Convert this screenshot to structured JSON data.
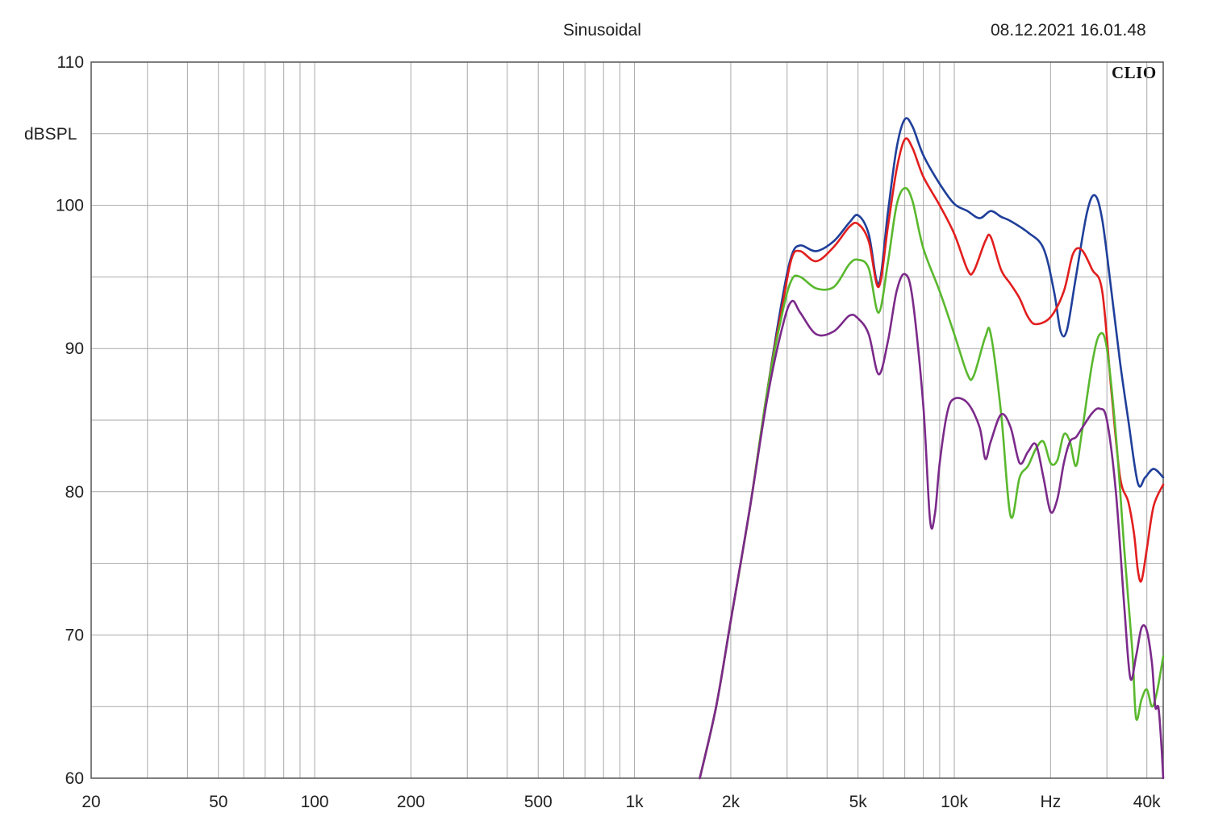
{
  "header": {
    "title": "Sinusoidal",
    "timestamp": "08.12.2021 16.01.48",
    "brand": "CLIO"
  },
  "chart_data": {
    "type": "line",
    "title": "Sinusoidal",
    "xlabel": "Hz",
    "ylabel": "dBSPL",
    "x_scale": "log",
    "xlim": [
      20,
      45000
    ],
    "ylim": [
      60,
      110
    ],
    "grid": true,
    "x_ticks": [
      {
        "value": 20,
        "label": "20"
      },
      {
        "value": 50,
        "label": "50"
      },
      {
        "value": 100,
        "label": "100"
      },
      {
        "value": 200,
        "label": "200"
      },
      {
        "value": 500,
        "label": "500"
      },
      {
        "value": 1000,
        "label": "1k"
      },
      {
        "value": 2000,
        "label": "2k"
      },
      {
        "value": 5000,
        "label": "5k"
      },
      {
        "value": 10000,
        "label": "10k"
      },
      {
        "value": 20000,
        "label": "Hz"
      },
      {
        "value": 40000,
        "label": "40k"
      }
    ],
    "y_ticks": [
      {
        "value": 60,
        "label": "60"
      },
      {
        "value": 70,
        "label": "70"
      },
      {
        "value": 80,
        "label": "80"
      },
      {
        "value": 90,
        "label": "90"
      },
      {
        "value": 100,
        "label": "100"
      },
      {
        "value": 110,
        "label": "110"
      }
    ],
    "series": [
      {
        "color": "#1f3f9a",
        "points": [
          [
            1600,
            60
          ],
          [
            1800,
            65
          ],
          [
            2000,
            71
          ],
          [
            2300,
            79
          ],
          [
            2600,
            87
          ],
          [
            2900,
            93.5
          ],
          [
            3100,
            96.5
          ],
          [
            3300,
            97.2
          ],
          [
            3700,
            96.8
          ],
          [
            4200,
            97.5
          ],
          [
            4700,
            98.8
          ],
          [
            5000,
            99.3
          ],
          [
            5400,
            98
          ],
          [
            5800,
            94.5
          ],
          [
            6200,
            99.5
          ],
          [
            6600,
            104
          ],
          [
            7000,
            106
          ],
          [
            7400,
            105.5
          ],
          [
            8000,
            103.5
          ],
          [
            9000,
            101.5
          ],
          [
            10000,
            100.1
          ],
          [
            11000,
            99.6
          ],
          [
            12000,
            99.1
          ],
          [
            13000,
            99.6
          ],
          [
            14000,
            99.2
          ],
          [
            15000,
            98.9
          ],
          [
            17000,
            98.1
          ],
          [
            19000,
            97
          ],
          [
            20500,
            94
          ],
          [
            21500,
            91.2
          ],
          [
            22500,
            91.3
          ],
          [
            24000,
            95
          ],
          [
            26000,
            99.5
          ],
          [
            27500,
            100.7
          ],
          [
            29000,
            99
          ],
          [
            31000,
            94
          ],
          [
            33000,
            89
          ],
          [
            35000,
            85
          ],
          [
            37500,
            80.6
          ],
          [
            39500,
            81
          ],
          [
            42000,
            81.6
          ],
          [
            45000,
            81
          ]
        ]
      },
      {
        "color": "#e21e1e",
        "points": [
          [
            1600,
            60
          ],
          [
            1800,
            65
          ],
          [
            2000,
            71
          ],
          [
            2300,
            79
          ],
          [
            2600,
            87
          ],
          [
            2900,
            93
          ],
          [
            3100,
            96.3
          ],
          [
            3300,
            96.8
          ],
          [
            3700,
            96.1
          ],
          [
            4200,
            97.1
          ],
          [
            4700,
            98.5
          ],
          [
            5000,
            98.7
          ],
          [
            5400,
            97.5
          ],
          [
            5800,
            94.3
          ],
          [
            6200,
            98.5
          ],
          [
            6600,
            102.5
          ],
          [
            7000,
            104.6
          ],
          [
            7400,
            104
          ],
          [
            8000,
            102
          ],
          [
            9000,
            100
          ],
          [
            10000,
            98
          ],
          [
            11000,
            95.5
          ],
          [
            11500,
            95.4
          ],
          [
            12500,
            97.5
          ],
          [
            13000,
            97.8
          ],
          [
            14000,
            95.5
          ],
          [
            15000,
            94.5
          ],
          [
            16000,
            93.5
          ],
          [
            17000,
            92.2
          ],
          [
            18000,
            91.7
          ],
          [
            20000,
            92.2
          ],
          [
            22000,
            94
          ],
          [
            23500,
            96.6
          ],
          [
            25000,
            96.9
          ],
          [
            27000,
            95.5
          ],
          [
            29000,
            94
          ],
          [
            31000,
            87
          ],
          [
            33000,
            81
          ],
          [
            35000,
            79.3
          ],
          [
            36500,
            77
          ],
          [
            37500,
            74.5
          ],
          [
            38500,
            73.8
          ],
          [
            40000,
            76
          ],
          [
            42000,
            79
          ],
          [
            45000,
            80.5
          ]
        ]
      },
      {
        "color": "#5ab82e",
        "points": [
          [
            1600,
            60
          ],
          [
            1800,
            65
          ],
          [
            2000,
            71
          ],
          [
            2300,
            79
          ],
          [
            2600,
            87
          ],
          [
            2900,
            92.5
          ],
          [
            3100,
            94.8
          ],
          [
            3300,
            95
          ],
          [
            3700,
            94.2
          ],
          [
            4200,
            94.3
          ],
          [
            4700,
            95.9
          ],
          [
            5000,
            96.2
          ],
          [
            5400,
            95.6
          ],
          [
            5800,
            92.5
          ],
          [
            6200,
            96
          ],
          [
            6600,
            100
          ],
          [
            7000,
            101.2
          ],
          [
            7400,
            100.3
          ],
          [
            8000,
            97
          ],
          [
            9000,
            94
          ],
          [
            10000,
            91
          ],
          [
            11000,
            88.2
          ],
          [
            11500,
            88.1
          ],
          [
            12500,
            90.8
          ],
          [
            13000,
            91
          ],
          [
            14000,
            85.5
          ],
          [
            15000,
            78.3
          ],
          [
            16000,
            81
          ],
          [
            17000,
            81.8
          ],
          [
            18000,
            83
          ],
          [
            19000,
            83.5
          ],
          [
            20000,
            82
          ],
          [
            21000,
            82.2
          ],
          [
            22000,
            84
          ],
          [
            23000,
            83.5
          ],
          [
            24000,
            81.8
          ],
          [
            25000,
            84
          ],
          [
            27000,
            89
          ],
          [
            28500,
            91
          ],
          [
            30000,
            90
          ],
          [
            32000,
            84
          ],
          [
            34000,
            76
          ],
          [
            36000,
            69
          ],
          [
            37000,
            64.2
          ],
          [
            38500,
            65.5
          ],
          [
            40000,
            66.2
          ],
          [
            41500,
            65
          ],
          [
            43000,
            66
          ],
          [
            45000,
            68.5
          ]
        ]
      },
      {
        "color": "#7b2a8a",
        "points": [
          [
            1600,
            60
          ],
          [
            1800,
            65
          ],
          [
            2000,
            71
          ],
          [
            2300,
            79
          ],
          [
            2600,
            86.5
          ],
          [
            2900,
            91.5
          ],
          [
            3100,
            93.3
          ],
          [
            3300,
            92.5
          ],
          [
            3700,
            91
          ],
          [
            4200,
            91.2
          ],
          [
            4700,
            92.3
          ],
          [
            5000,
            92.1
          ],
          [
            5400,
            91
          ],
          [
            5800,
            88.2
          ],
          [
            6200,
            90.5
          ],
          [
            6600,
            94
          ],
          [
            7000,
            95.2
          ],
          [
            7400,
            93.5
          ],
          [
            8000,
            86
          ],
          [
            8400,
            78
          ],
          [
            8700,
            78.5
          ],
          [
            9000,
            82
          ],
          [
            9500,
            85.5
          ],
          [
            10000,
            86.5
          ],
          [
            11000,
            86.2
          ],
          [
            12000,
            84.5
          ],
          [
            12500,
            82.3
          ],
          [
            13000,
            83.5
          ],
          [
            14000,
            85.4
          ],
          [
            15000,
            84.5
          ],
          [
            16000,
            82
          ],
          [
            17000,
            82.8
          ],
          [
            18000,
            83.3
          ],
          [
            19000,
            81
          ],
          [
            20000,
            78.6
          ],
          [
            21000,
            79.5
          ],
          [
            22000,
            82
          ],
          [
            23000,
            83.5
          ],
          [
            24000,
            83.8
          ],
          [
            25000,
            84.4
          ],
          [
            27000,
            85.5
          ],
          [
            28500,
            85.8
          ],
          [
            30000,
            85
          ],
          [
            32000,
            80
          ],
          [
            34000,
            72
          ],
          [
            35500,
            67
          ],
          [
            37000,
            68.5
          ],
          [
            38500,
            70.5
          ],
          [
            40000,
            70.3
          ],
          [
            41500,
            68
          ],
          [
            42500,
            65
          ],
          [
            43500,
            64.9
          ],
          [
            44500,
            62
          ],
          [
            45000,
            60
          ]
        ]
      }
    ]
  }
}
